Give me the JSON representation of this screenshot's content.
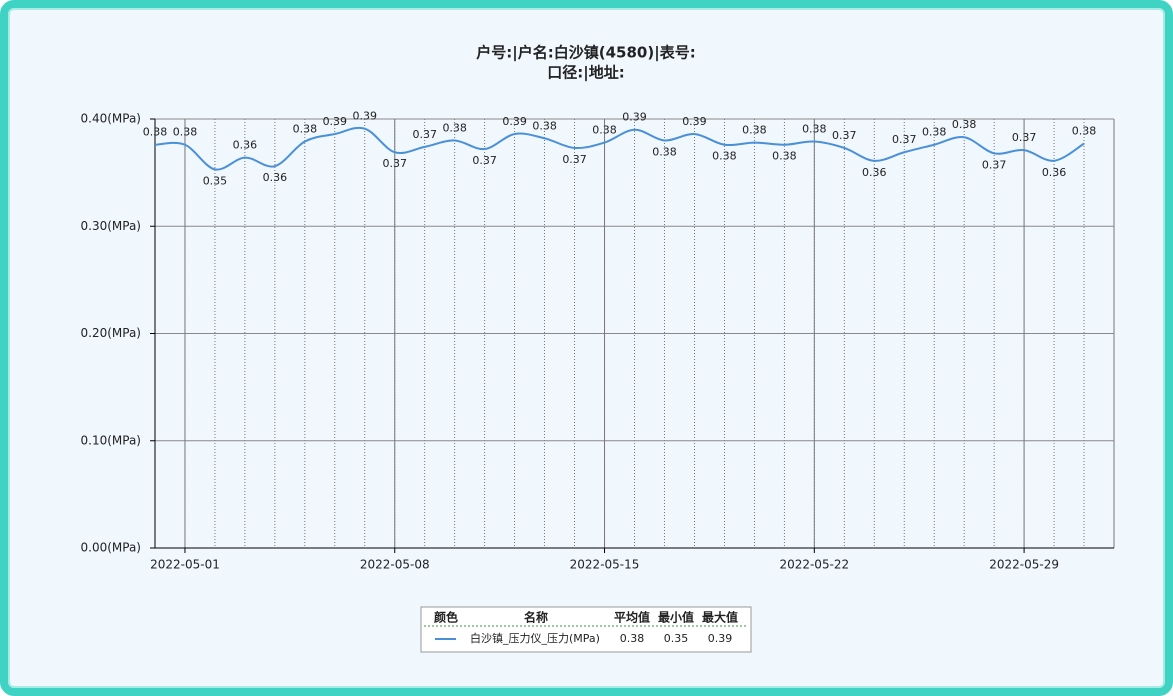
{
  "chart_data": {
    "type": "line",
    "title": "户号:|户名:白沙镇(4580)|表号:",
    "subtitle": "口径:|地址:",
    "x": [
      "2022-04-30",
      "2022-05-01",
      "2022-05-02",
      "2022-05-03",
      "2022-05-04",
      "2022-05-05",
      "2022-05-06",
      "2022-05-07",
      "2022-05-08",
      "2022-05-09",
      "2022-05-10",
      "2022-05-11",
      "2022-05-12",
      "2022-05-13",
      "2022-05-14",
      "2022-05-15",
      "2022-05-16",
      "2022-05-17",
      "2022-05-18",
      "2022-05-19",
      "2022-05-20",
      "2022-05-21",
      "2022-05-22",
      "2022-05-23",
      "2022-05-24",
      "2022-05-25",
      "2022-05-26",
      "2022-05-27",
      "2022-05-28",
      "2022-05-29",
      "2022-05-30",
      "2022-05-31"
    ],
    "series": [
      {
        "name": "白沙镇_压力仪_压力(MPa)",
        "color": "#4a90d9",
        "values": [
          0.376,
          0.376,
          0.353,
          0.364,
          0.356,
          0.379,
          0.386,
          0.391,
          0.369,
          0.374,
          0.38,
          0.372,
          0.386,
          0.382,
          0.373,
          0.378,
          0.39,
          0.38,
          0.386,
          0.376,
          0.378,
          0.376,
          0.379,
          0.373,
          0.361,
          0.369,
          0.376,
          0.383,
          0.368,
          0.371,
          0.361,
          0.377
        ],
        "value_labels": [
          "0.38",
          "0.38",
          "0.35",
          "0.36",
          "0.36",
          "0.38",
          "0.39",
          "0.39",
          "0.37",
          "0.37",
          "0.38",
          "0.37",
          "0.39",
          "0.38",
          "0.37",
          "0.38",
          "0.39",
          "0.38",
          "0.39",
          "0.38",
          "0.38",
          "0.38",
          "0.38",
          "0.37",
          "0.36",
          "0.37",
          "0.38",
          "0.38",
          "0.37",
          "0.37",
          "0.36",
          "0.38"
        ]
      }
    ],
    "xlim": [
      "2022-04-30",
      "2022-06-01"
    ],
    "xticks": [
      "2022-05-01",
      "2022-05-08",
      "2022-05-15",
      "2022-05-22",
      "2022-05-29"
    ],
    "ylim": [
      0,
      0.4
    ],
    "yticks": [
      {
        "value": 0,
        "label": "0.00(MPa)"
      },
      {
        "value": 0.1,
        "label": "0.10(MPa)"
      },
      {
        "value": 0.2,
        "label": "0.20(MPa)"
      },
      {
        "value": 0.3,
        "label": "0.30(MPa)"
      },
      {
        "value": 0.4,
        "label": "0.40(MPa)"
      }
    ],
    "grid": true,
    "legend_table": {
      "columns": [
        "颜色",
        "名称",
        "平均值",
        "最小值",
        "最大值"
      ],
      "stats": [
        "0.38",
        "0.35",
        "0.39"
      ]
    }
  }
}
